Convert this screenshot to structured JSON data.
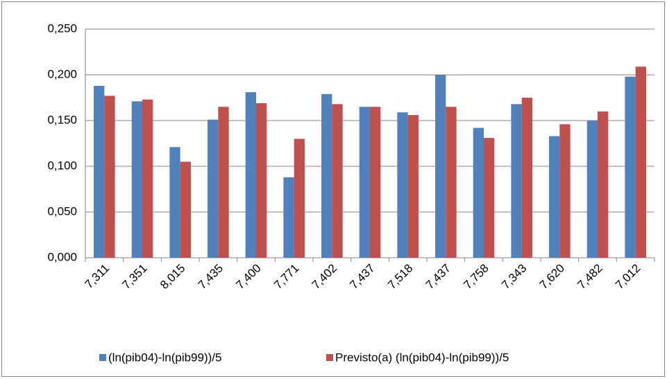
{
  "chart_data": {
    "type": "bar",
    "categories": [
      "7,311",
      "7,351",
      "8,015",
      "7,435",
      "7,400",
      "7,771",
      "7,402",
      "7,437",
      "7,518",
      "7,437",
      "7,758",
      "7,343",
      "7,620",
      "7,482",
      "7,012"
    ],
    "series": [
      {
        "name": "(ln(pib04)-ln(pib99))/5",
        "color": "#4f81bd",
        "values": [
          0.188,
          0.171,
          0.121,
          0.151,
          0.181,
          0.088,
          0.179,
          0.165,
          0.159,
          0.2,
          0.142,
          0.168,
          0.133,
          0.15,
          0.198
        ]
      },
      {
        "name": "Previsto(a) (ln(pib04)-ln(pib99))/5",
        "color": "#c0504d",
        "values": [
          0.177,
          0.173,
          0.105,
          0.165,
          0.169,
          0.13,
          0.168,
          0.165,
          0.156,
          0.165,
          0.131,
          0.175,
          0.146,
          0.16,
          0.209
        ]
      }
    ],
    "ylim": [
      0,
      0.25
    ],
    "yticks": [
      {
        "value": 0,
        "label": "0,000"
      },
      {
        "value": 0.05,
        "label": "0,050"
      },
      {
        "value": 0.1,
        "label": "0,100"
      },
      {
        "value": 0.15,
        "label": "0,150"
      },
      {
        "value": 0.2,
        "label": "0,200"
      },
      {
        "value": 0.25,
        "label": "0,250"
      }
    ],
    "grid": true,
    "legend": "bottom"
  }
}
